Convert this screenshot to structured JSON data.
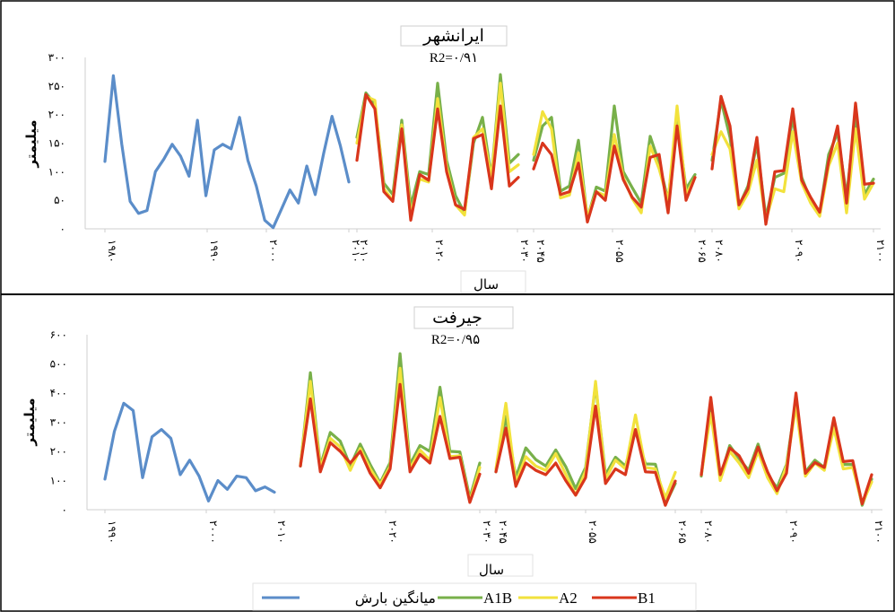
{
  "chart_data": [
    {
      "type": "line",
      "title": "ایرانشهر",
      "subtitle": "R2=۰/۹۱",
      "ylabel": "میلیمتر",
      "xlabel": "سال",
      "yticks": [
        "۰",
        "۵۰",
        "۱۰۰",
        "۱۵۰",
        "۲۰۰",
        "۲۵۰",
        "۳۰۰"
      ],
      "ylim": [
        0,
        300
      ],
      "observed": {
        "name": "میانگین بارش",
        "values": [
          118,
          268,
          148,
          48,
          27,
          32,
          100,
          122,
          148,
          127,
          92,
          190,
          58,
          138,
          148,
          140,
          195,
          120,
          75,
          15,
          2,
          35,
          68,
          45,
          110,
          60,
          132,
          197,
          145,
          82
        ],
        "xticks": [
          "۱۹۸۰",
          "۱۹۹۰",
          "۲۰۰۰",
          "۲۰۱۰"
        ]
      },
      "periods": [
        {
          "xticks": [
            "۲۰۱۰",
            "۲۰۲۰",
            "۲۰۳۰"
          ],
          "series": [
            {
              "name": "A1B",
              "values": [
                160,
                238,
                218,
                80,
                60,
                190,
                40,
                100,
                95,
                255,
                120,
                58,
                28,
                150,
                195,
                90,
                270,
                115,
                130
              ]
            },
            {
              "name": "A2",
              "values": [
                150,
                232,
                225,
                70,
                50,
                182,
                25,
                87,
                82,
                228,
                108,
                42,
                24,
                160,
                175,
                88,
                255,
                100,
                112
              ]
            },
            {
              "name": "B1",
              "values": [
                120,
                235,
                210,
                65,
                48,
                175,
                15,
                95,
                85,
                210,
                100,
                42,
                34,
                158,
                165,
                70,
                215,
                75,
                90
              ]
            }
          ]
        },
        {
          "xticks": [
            "۲۰۴۵",
            "۲۰۵۵",
            "۲۰۶۵"
          ],
          "series": [
            {
              "name": "A1B",
              "values": [
                120,
                180,
                195,
                66,
                75,
                155,
                18,
                73,
                66,
                215,
                100,
                72,
                45,
                162,
                115,
                50,
                195,
                70,
                95
              ]
            },
            {
              "name": "A2",
              "values": [
                130,
                205,
                175,
                54,
                59,
                133,
                20,
                65,
                58,
                165,
                90,
                53,
                28,
                145,
                105,
                48,
                215,
                60,
                90
              ]
            },
            {
              "name": "B1",
              "values": [
                105,
                150,
                130,
                60,
                65,
                115,
                12,
                65,
                50,
                145,
                86,
                55,
                38,
                125,
                130,
                28,
                180,
                50,
                90
              ]
            }
          ]
        },
        {
          "xticks": [
            "۲۰۸۰",
            "۲۰۹۰",
            "۲۱۰۰"
          ],
          "series": [
            {
              "name": "A1B",
              "values": [
                120,
                225,
                160,
                40,
                75,
                148,
                20,
                90,
                97,
                195,
                90,
                50,
                28,
                130,
                168,
                57,
                200,
                60,
                87
              ]
            },
            {
              "name": "A2",
              "values": [
                130,
                170,
                140,
                35,
                62,
                120,
                15,
                70,
                65,
                170,
                80,
                45,
                22,
                110,
                150,
                28,
                175,
                52,
                80
              ]
            },
            {
              "name": "B1",
              "values": [
                105,
                232,
                180,
                42,
                70,
                160,
                8,
                100,
                102,
                210,
                85,
                55,
                29,
                118,
                180,
                45,
                220,
                78,
                80
              ]
            }
          ]
        }
      ]
    },
    {
      "type": "line",
      "title": "جیرفت",
      "subtitle": "R2=۰/۹۵",
      "ylabel": "میلیمتر",
      "xlabel": "سال",
      "yticks": [
        "۰",
        "۱۰۰",
        "۲۰۰",
        "۳۰۰",
        "۴۰۰",
        "۵۰۰",
        "۶۰۰"
      ],
      "ylim": [
        0,
        600
      ],
      "observed": {
        "name": "میانگین بارش",
        "values": [
          105,
          268,
          365,
          340,
          110,
          250,
          275,
          245,
          120,
          170,
          115,
          30,
          100,
          70,
          115,
          110,
          65,
          78,
          60
        ],
        "xticks": [
          "۱۹۹۰",
          "۲۰۰۰",
          "۲۰۱۰"
        ]
      },
      "periods": [
        {
          "xticks": [
            "۲۰۲۰",
            "۲۰۳۰"
          ],
          "series": [
            {
              "name": "A1B",
              "values": [
                150,
                470,
                150,
                265,
                235,
                150,
                225,
                155,
                92,
                162,
                535,
                155,
                220,
                200,
                420,
                200,
                198,
                40,
                160
              ]
            },
            {
              "name": "A2",
              "values": [
                152,
                440,
                142,
                245,
                215,
                135,
                210,
                140,
                87,
                148,
                485,
                140,
                205,
                170,
                385,
                182,
                185,
                30,
                145
              ]
            },
            {
              "name": "B1",
              "values": [
                150,
                380,
                130,
                230,
                200,
                160,
                200,
                125,
                75,
                140,
                430,
                130,
                190,
                160,
                320,
                175,
                180,
                25,
                122
              ]
            }
          ]
        },
        {
          "xticks": [
            "۲۰۴۵",
            "۲۰۵۵",
            "۲۰۶۵"
          ],
          "series": [
            {
              "name": "A1B",
              "values": [
                130,
                320,
                110,
                212,
                172,
                150,
                205,
                148,
                72,
                145,
                430,
                120,
                180,
                150,
                270,
                157,
                156,
                18,
                90
              ]
            },
            {
              "name": "A2",
              "values": [
                140,
                365,
                92,
                182,
                150,
                135,
                192,
                122,
                50,
                132,
                440,
                105,
                170,
                140,
                325,
                145,
                140,
                40,
                128
              ]
            },
            {
              "name": "B1",
              "values": [
                130,
                280,
                80,
                160,
                135,
                120,
                160,
                100,
                50,
                110,
                355,
                90,
                140,
                120,
                275,
                130,
                128,
                15,
                98
              ]
            }
          ]
        },
        {
          "xticks": [
            "۲۰۸۰",
            "۲۰۹۰",
            "۲۱۰۰"
          ],
          "series": [
            {
              "name": "A1B",
              "values": [
                115,
                370,
                110,
                220,
                175,
                135,
                225,
                120,
                75,
                155,
                375,
                130,
                170,
                145,
                300,
                155,
                155,
                15,
                105
              ]
            },
            {
              "name": "A2",
              "values": [
                120,
                330,
                100,
                200,
                160,
                110,
                200,
                110,
                55,
                150,
                355,
                115,
                160,
                135,
                280,
                140,
                145,
                20,
                95
              ]
            },
            {
              "name": "B1",
              "values": [
                120,
                385,
                120,
                212,
                185,
                125,
                215,
                130,
                65,
                125,
                400,
                125,
                162,
                145,
                315,
                165,
                168,
                20,
                120
              ]
            }
          ]
        }
      ]
    }
  ],
  "legend": [
    {
      "name": "میانگین بارش",
      "color": "#5b8dc9"
    },
    {
      "name": "A1B",
      "color": "#78b04a"
    },
    {
      "name": "A2",
      "color": "#f2e23c"
    },
    {
      "name": "B1",
      "color": "#d9361c"
    }
  ],
  "colors": {
    "observed": "#5b8dc9",
    "A1B": "#78b04a",
    "A2": "#f2e23c",
    "B1": "#d9361c",
    "frame": "#000000"
  }
}
